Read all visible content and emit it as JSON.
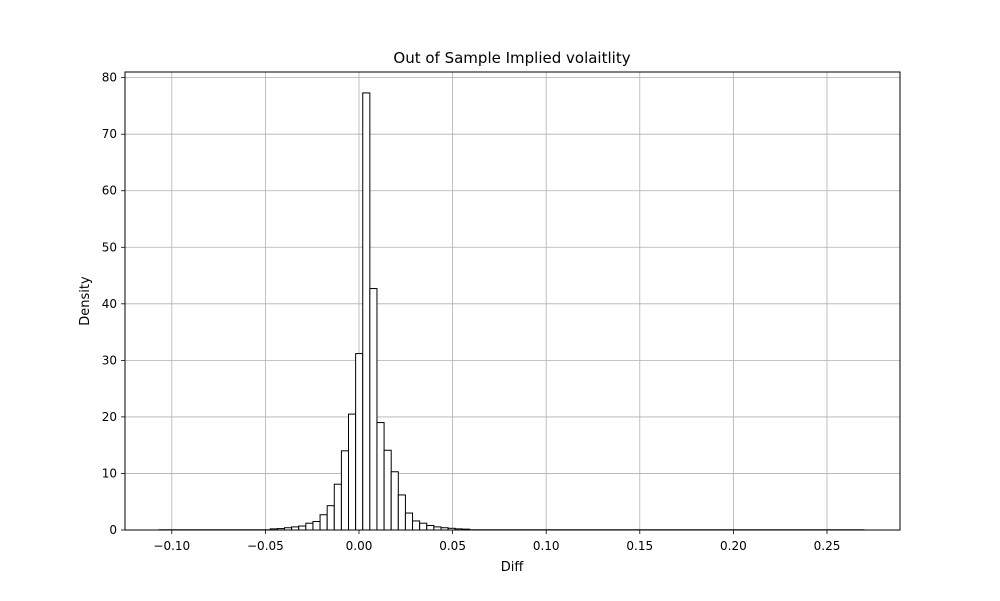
{
  "chart_data": {
    "type": "bar",
    "title": "Out of Sample Implied volaitlity",
    "xlabel": "Diff",
    "ylabel": "Density",
    "xlim": [
      -0.125,
      0.289
    ],
    "ylim": [
      0,
      81
    ],
    "grid": true,
    "x_ticks": [
      -0.1,
      -0.05,
      0.0,
      0.05,
      0.1,
      0.15,
      0.2,
      0.25
    ],
    "x_tick_labels": [
      "−0.10",
      "−0.05",
      "0.00",
      "0.05",
      "0.10",
      "0.15",
      "0.20",
      "0.25"
    ],
    "y_ticks": [
      0,
      10,
      20,
      30,
      40,
      50,
      60,
      70,
      80
    ],
    "y_tick_labels": [
      "0",
      "10",
      "20",
      "30",
      "40",
      "50",
      "60",
      "70",
      "80"
    ],
    "bin_width": 0.0038,
    "bins": [
      {
        "x": -0.0474,
        "density": 0.2
      },
      {
        "x": -0.0436,
        "density": 0.25
      },
      {
        "x": -0.0398,
        "density": 0.4
      },
      {
        "x": -0.036,
        "density": 0.55
      },
      {
        "x": -0.0322,
        "density": 0.7
      },
      {
        "x": -0.0284,
        "density": 1.2
      },
      {
        "x": -0.0246,
        "density": 1.5
      },
      {
        "x": -0.0208,
        "density": 2.7
      },
      {
        "x": -0.017,
        "density": 4.3
      },
      {
        "x": -0.0132,
        "density": 8.1
      },
      {
        "x": -0.0094,
        "density": 14.0
      },
      {
        "x": -0.0056,
        "density": 20.5
      },
      {
        "x": -0.0018,
        "density": 31.2
      },
      {
        "x": 0.002,
        "density": 77.3
      },
      {
        "x": 0.0058,
        "density": 42.7
      },
      {
        "x": 0.0096,
        "density": 19.0
      },
      {
        "x": 0.0134,
        "density": 14.1
      },
      {
        "x": 0.0172,
        "density": 10.3
      },
      {
        "x": 0.021,
        "density": 6.2
      },
      {
        "x": 0.0248,
        "density": 3.0
      },
      {
        "x": 0.0286,
        "density": 1.6
      },
      {
        "x": 0.0324,
        "density": 1.2
      },
      {
        "x": 0.0362,
        "density": 0.8
      },
      {
        "x": 0.04,
        "density": 0.55
      },
      {
        "x": 0.0438,
        "density": 0.4
      },
      {
        "x": 0.0476,
        "density": 0.3
      },
      {
        "x": 0.0514,
        "density": 0.2
      },
      {
        "x": 0.0552,
        "density": 0.15
      }
    ],
    "tail_baseline": {
      "x_start": -0.107,
      "x_end": 0.27,
      "density": 0.05
    }
  }
}
